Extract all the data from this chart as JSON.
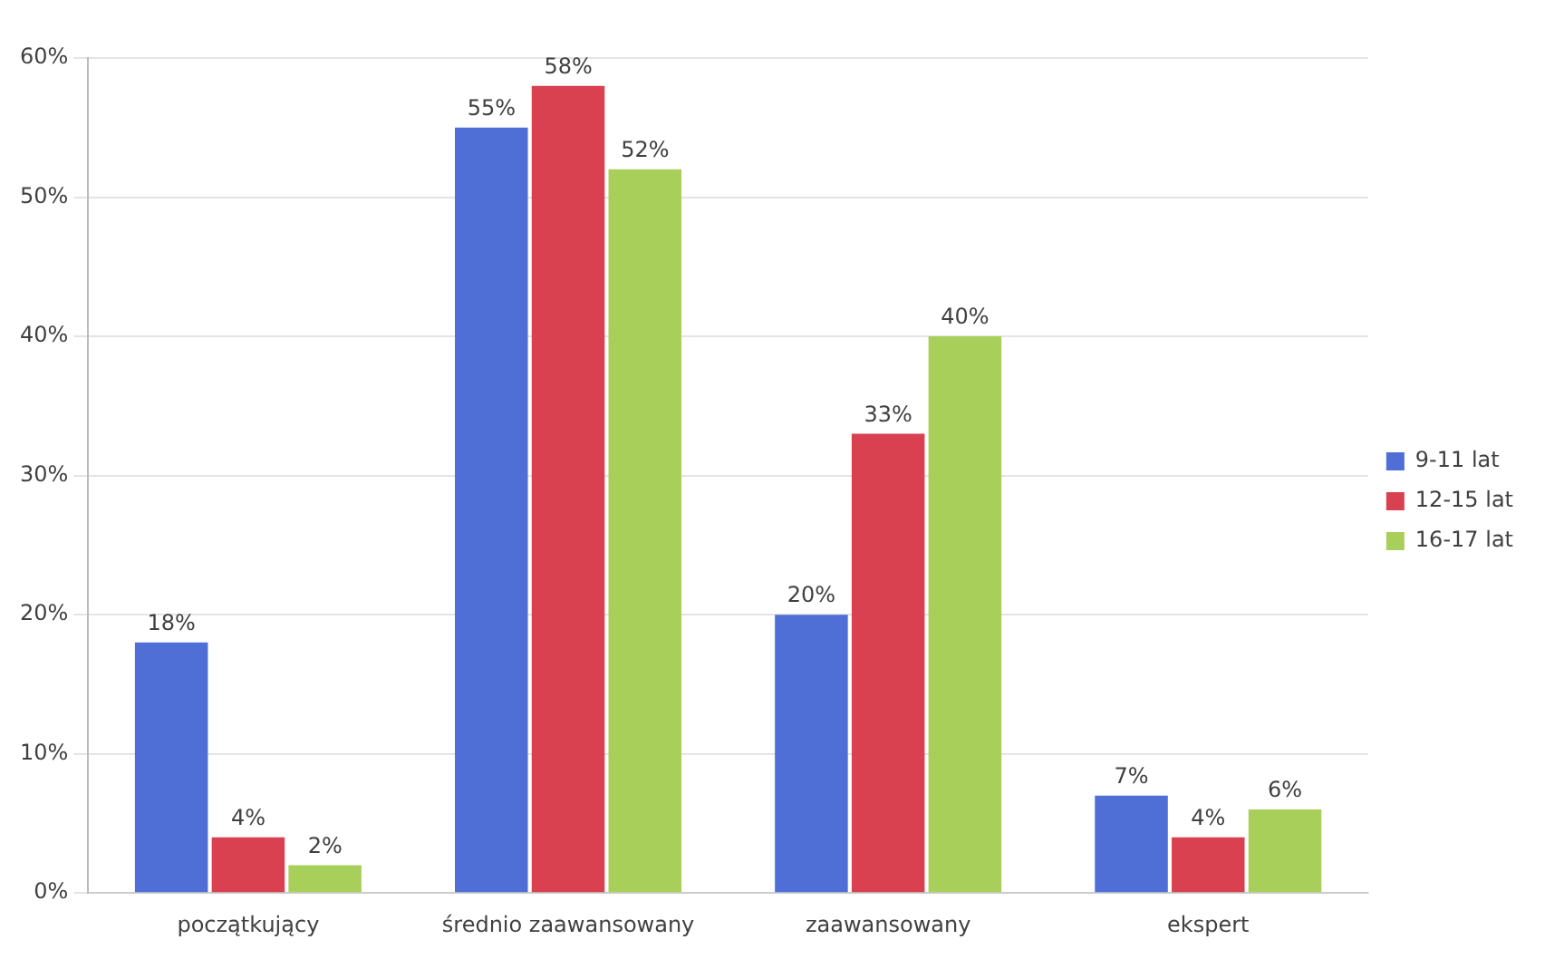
{
  "chart_data": {
    "type": "bar",
    "categories": [
      "początkujący",
      "średnio zaawansowany",
      "zaawansowany",
      "ekspert"
    ],
    "series": [
      {
        "name": "9-11 lat",
        "color": "#4f6fd6",
        "values": [
          18,
          55,
          20,
          7
        ],
        "value_labels": [
          "18%",
          "55%",
          "20%",
          "7%"
        ]
      },
      {
        "name": "12-15 lat",
        "color": "#d94050",
        "values": [
          4,
          58,
          33,
          4
        ],
        "value_labels": [
          "4%",
          "58%",
          "33%",
          "4%"
        ]
      },
      {
        "name": "16-17 lat",
        "color": "#a8cf5a",
        "values": [
          2,
          52,
          40,
          6
        ],
        "value_labels": [
          "2%",
          "52%",
          "40%",
          "6%"
        ]
      }
    ],
    "ylim": [
      0,
      60
    ],
    "yticks": [
      {
        "value": 0,
        "label": "0%"
      },
      {
        "value": 10,
        "label": "10%"
      },
      {
        "value": 20,
        "label": "20%"
      },
      {
        "value": 30,
        "label": "30%"
      },
      {
        "value": 40,
        "label": "40%"
      },
      {
        "value": 50,
        "label": "50%"
      },
      {
        "value": 60,
        "label": "60%"
      }
    ],
    "grid": "y",
    "legend": "right"
  }
}
